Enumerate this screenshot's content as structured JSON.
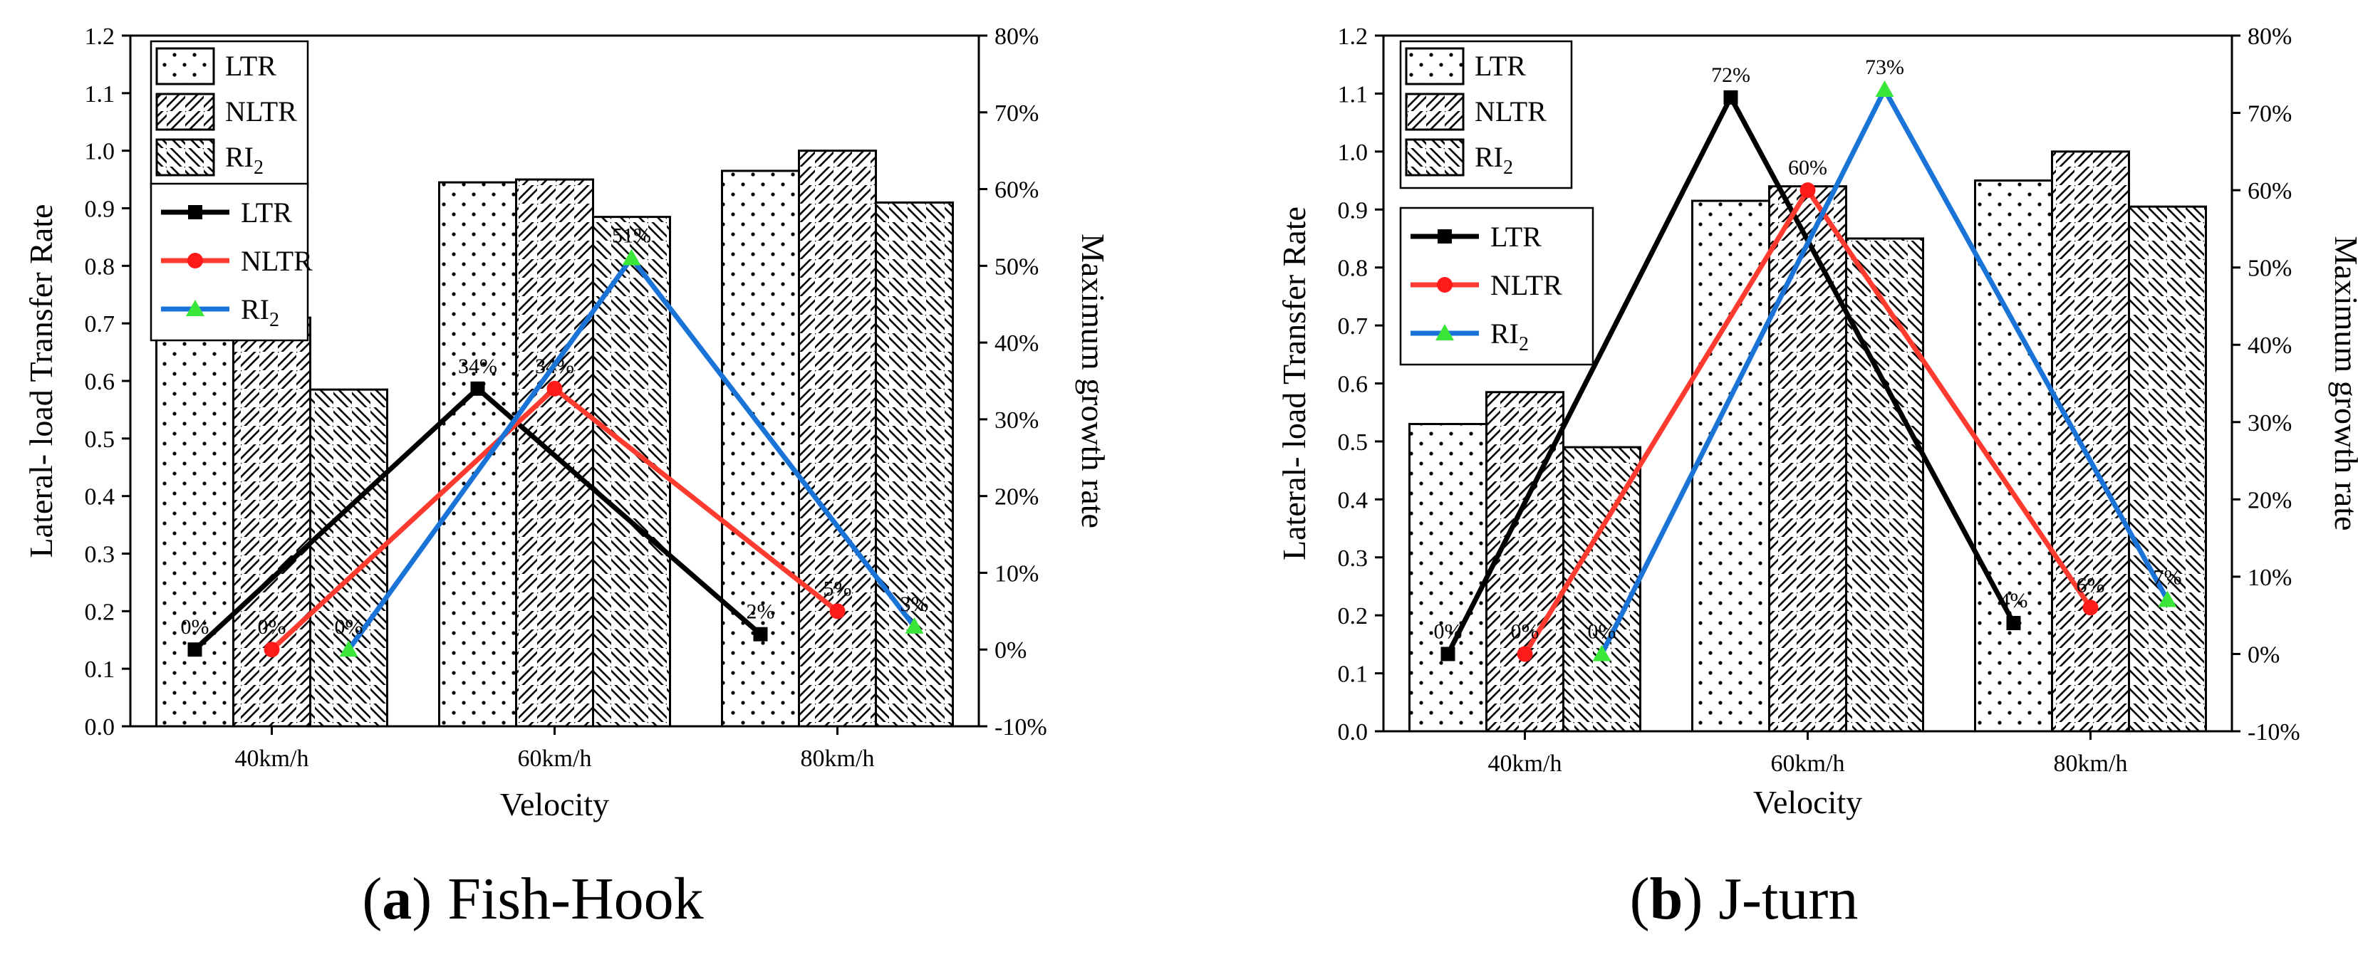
{
  "charts": [
    {
      "caption_letter": "a",
      "caption_open": "(",
      "caption_close": ")",
      "caption_title": "Fish-Hook",
      "type": "bar+line",
      "xlabel": "Velocity",
      "ylabel": "Lateral- load Transfer Rate",
      "y2label": "Maximum growth rate",
      "ylim": [
        0,
        1.2
      ],
      "y2lim": [
        -10,
        80
      ],
      "yticks": [
        "0.0",
        "0.1",
        "0.2",
        "0.3",
        "0.4",
        "0.5",
        "0.6",
        "0.7",
        "0.8",
        "0.9",
        "1.0",
        "1.1",
        "1.2"
      ],
      "y2ticks": [
        "-10%",
        "0%",
        "10%",
        "20%",
        "30%",
        "40%",
        "50%",
        "60%",
        "70%",
        "80%"
      ],
      "categories": [
        "40km/h",
        "60km/h",
        "80km/h"
      ],
      "bar_series": [
        {
          "name": "LTR",
          "values": [
            0.71,
            0.945,
            0.965
          ]
        },
        {
          "name": "NLTR",
          "values": [
            0.71,
            0.95,
            1.0
          ]
        },
        {
          "name": "RI",
          "sub": "2",
          "values": [
            0.585,
            0.885,
            0.91
          ]
        }
      ],
      "line_series": [
        {
          "name": "LTR",
          "color": "#000000",
          "marker": "square",
          "values": [
            0,
            34,
            2
          ],
          "labels": [
            "0%",
            "34%",
            "2%"
          ]
        },
        {
          "name": "NLTR",
          "color": "#ff3b30",
          "marker": "circle",
          "values": [
            0,
            34,
            5
          ],
          "labels": [
            "0%",
            "34%",
            "5%"
          ]
        },
        {
          "name": "RI",
          "sub": "2",
          "color": "#1a74d8",
          "marker": "triangle",
          "values": [
            0,
            51,
            3
          ],
          "labels": [
            "0%",
            "51%",
            "3%"
          ]
        }
      ]
    },
    {
      "caption_letter": "b",
      "caption_open": "(",
      "caption_close": ")",
      "caption_title": "J-turn",
      "type": "bar+line",
      "xlabel": "Velocity",
      "ylabel": "Lateral- load Transfer Rate",
      "y2label": "Maximum growth rate",
      "ylim": [
        0,
        1.2
      ],
      "y2lim": [
        -10,
        80
      ],
      "yticks": [
        "0.0",
        "0.1",
        "0.2",
        "0.3",
        "0.4",
        "0.5",
        "0.6",
        "0.7",
        "0.8",
        "0.9",
        "1.0",
        "1.1",
        "1.2"
      ],
      "y2ticks": [
        "-10%",
        "0%",
        "10%",
        "20%",
        "30%",
        "40%",
        "50%",
        "60%",
        "70%",
        "80%"
      ],
      "categories": [
        "40km/h",
        "60km/h",
        "80km/h"
      ],
      "bar_series": [
        {
          "name": "LTR",
          "values": [
            0.53,
            0.915,
            0.95
          ]
        },
        {
          "name": "NLTR",
          "values": [
            0.585,
            0.94,
            1.0
          ]
        },
        {
          "name": "RI",
          "sub": "2",
          "values": [
            0.49,
            0.85,
            0.905
          ]
        }
      ],
      "line_series": [
        {
          "name": "LTR",
          "color": "#000000",
          "marker": "square",
          "values": [
            0,
            72,
            4
          ],
          "labels": [
            "0%",
            "72%",
            "4%"
          ]
        },
        {
          "name": "NLTR",
          "color": "#ff3b30",
          "marker": "circle",
          "values": [
            0,
            60,
            6
          ],
          "labels": [
            "0%",
            "60%",
            "6%"
          ]
        },
        {
          "name": "RI",
          "sub": "2",
          "color": "#1a74d8",
          "marker": "triangle",
          "values": [
            0,
            73,
            7
          ],
          "labels": [
            "0%",
            "73%",
            "7%"
          ]
        }
      ]
    }
  ]
}
